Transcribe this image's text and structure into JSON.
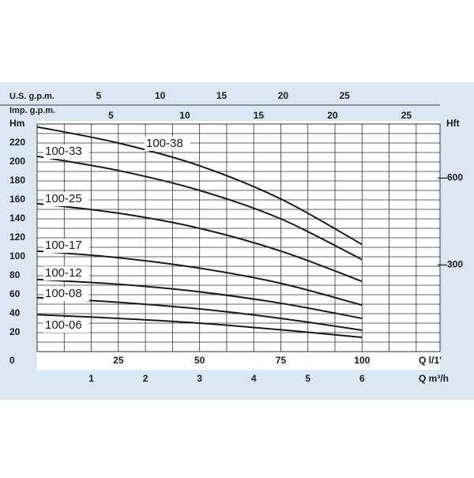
{
  "chart_data": {
    "type": "line",
    "x_label": "Q l/1'",
    "y_label": "Hm",
    "xlim": [
      0,
      124
    ],
    "xticks": [
      25,
      50,
      75,
      100
    ],
    "ylim": [
      0,
      240
    ],
    "yticks": [
      0,
      20,
      40,
      60,
      80,
      100,
      120,
      140,
      160,
      180,
      200,
      220
    ],
    "y_minor_grid": [
      10,
      30,
      50,
      70,
      90,
      110,
      130,
      150,
      170,
      190,
      210,
      230
    ],
    "x2_label": "Q m³/h",
    "x2lim": [
      0,
      7.44
    ],
    "x2ticks": [
      1,
      2,
      3,
      4,
      5,
      6
    ],
    "x2_grid": [
      0.5,
      1,
      1.5,
      2,
      2.5,
      3,
      3.5,
      4,
      4.5,
      5,
      5.5,
      6,
      6.5,
      7
    ],
    "top_axes": [
      {
        "label": "U.S. g.p.m.",
        "lim": [
          0,
          32.76
        ],
        "ticks": [
          5,
          10,
          15,
          20,
          25
        ]
      },
      {
        "label": "Imp. g.p.m.",
        "lim": [
          0,
          27.28
        ],
        "ticks": [
          5,
          10,
          15,
          20,
          25
        ]
      }
    ],
    "y2_label": "Hft",
    "y2lim": [
      0,
      787.4
    ],
    "y2ticks": [
      {
        "value": 300,
        "label": "—300"
      },
      {
        "value": 600,
        "label": "—600"
      }
    ],
    "x": [
      0,
      25,
      50,
      75,
      100
    ],
    "series": [
      {
        "name": "100-38",
        "color": "#1a1a1a",
        "values": [
          237,
          220,
          196,
          161,
          113
        ]
      },
      {
        "name": "100-33",
        "color": "#1a1a1a",
        "values": [
          206,
          191,
          170,
          140,
          97
        ]
      },
      {
        "name": "100-25",
        "color": "#1a1a1a",
        "values": [
          156,
          146,
          130,
          106,
          74
        ]
      },
      {
        "name": "100-17",
        "color": "#1a1a1a",
        "values": [
          106,
          99,
          88,
          72,
          49
        ]
      },
      {
        "name": "100-12",
        "color": "#1a1a1a",
        "values": [
          76,
          71,
          63,
          51,
          35
        ]
      },
      {
        "name": "100-08",
        "color": "#1a1a1a",
        "values": [
          57,
          52,
          45,
          35,
          22.5
        ]
      },
      {
        "name": "100-06",
        "color": "#1a1a1a",
        "values": [
          39,
          35,
          30,
          23,
          15
        ]
      }
    ],
    "grid": true
  }
}
